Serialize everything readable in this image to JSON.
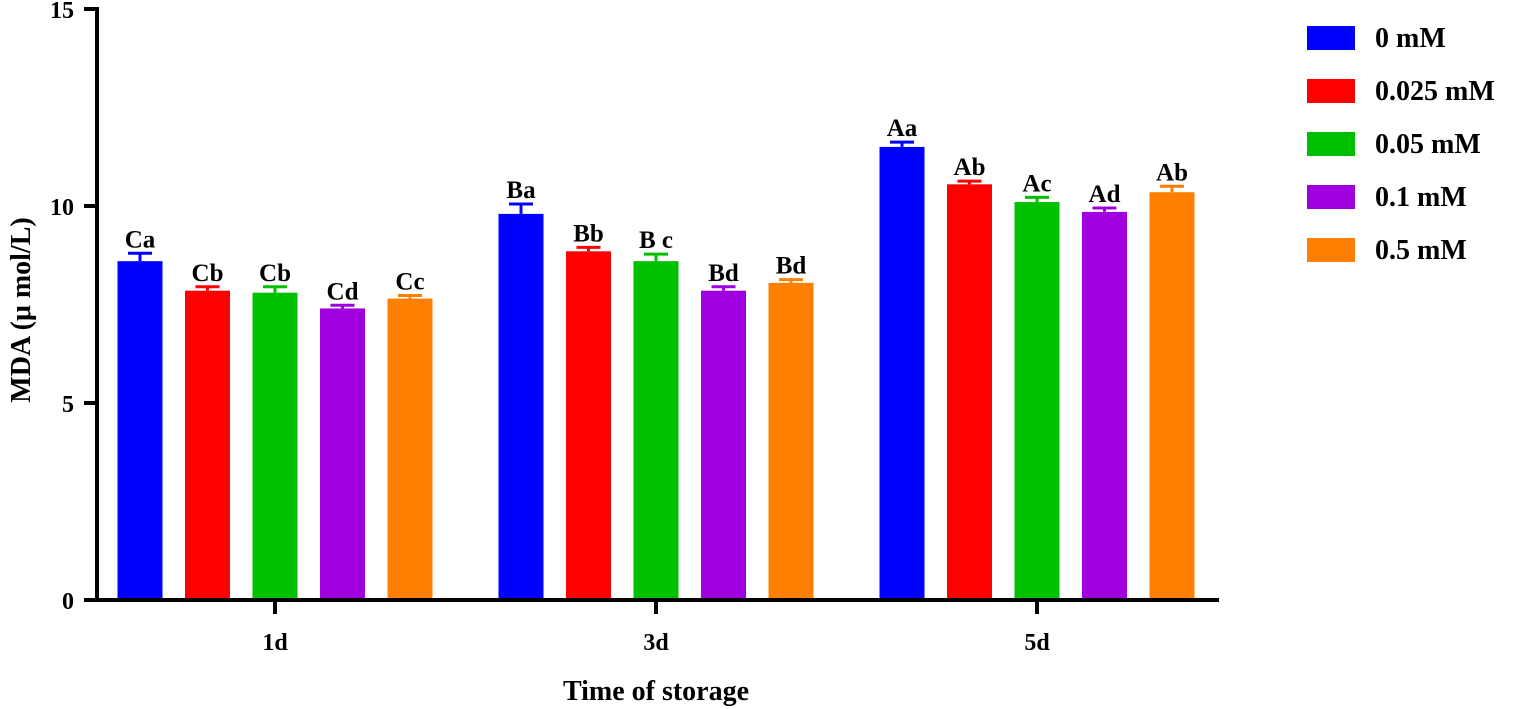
{
  "chart_data": {
    "type": "bar",
    "xlabel": "Time of storage",
    "ylabel": "MDA (μ mol/L)",
    "ylim": [
      0,
      15
    ],
    "yticks": [
      0,
      5,
      10,
      15
    ],
    "grid": false,
    "legend_position": "right",
    "categories": [
      "1d",
      "3d",
      "5d"
    ],
    "series": [
      {
        "name": "0 mM",
        "color": "#0000FF",
        "values": [
          8.6,
          9.8,
          11.5
        ],
        "errors": [
          0.2,
          0.25,
          0.12
        ],
        "labels": [
          "Ca",
          "Ba",
          "Aa"
        ]
      },
      {
        "name": "0.025 mM",
        "color": "#FF0000",
        "values": [
          7.85,
          8.85,
          10.55
        ],
        "errors": [
          0.1,
          0.1,
          0.08
        ],
        "labels": [
          "Cb",
          "Bb",
          "Ab"
        ]
      },
      {
        "name": "0.05 mM",
        "color": "#00C000",
        "values": [
          7.8,
          8.6,
          10.1
        ],
        "errors": [
          0.15,
          0.18,
          0.12
        ],
        "labels": [
          "Cb",
          "B c",
          "Ac"
        ]
      },
      {
        "name": "0.1 mM",
        "color": "#A000E0",
        "values": [
          7.4,
          7.85,
          9.85
        ],
        "errors": [
          0.08,
          0.1,
          0.1
        ],
        "labels": [
          "Cd",
          "Bd",
          "Ad"
        ]
      },
      {
        "name": "0.5 mM",
        "color": "#FF8000",
        "values": [
          7.65,
          8.05,
          10.35
        ],
        "errors": [
          0.08,
          0.08,
          0.15
        ],
        "labels": [
          "Cc",
          "Bd",
          "Ab"
        ]
      }
    ]
  }
}
